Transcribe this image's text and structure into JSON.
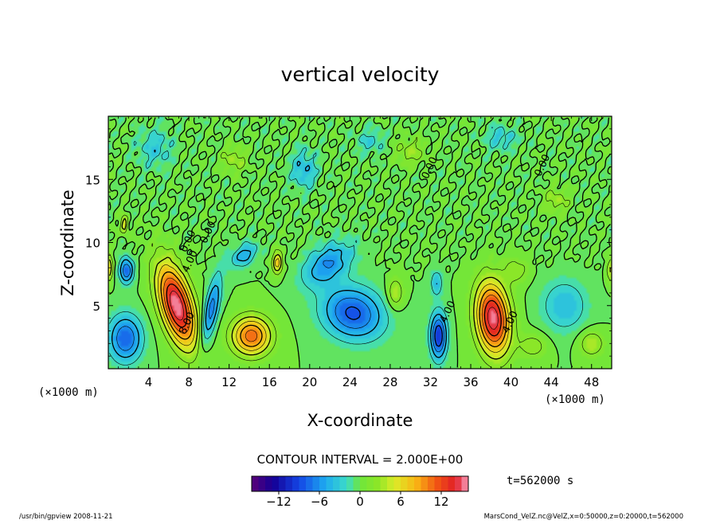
{
  "chart_data": {
    "type": "heatmap",
    "title": "vertical velocity",
    "xlabel": "X-coordinate",
    "ylabel": "Z-coordinate",
    "x_unit_left": "(×1000 m)",
    "x_unit_right": "(×1000 m)",
    "xlim": [
      0,
      50
    ],
    "ylim": [
      0,
      20
    ],
    "x_ticks": [
      4,
      8,
      12,
      16,
      20,
      24,
      28,
      32,
      36,
      40,
      44,
      48
    ],
    "y_ticks": [
      5,
      10,
      15
    ],
    "contour_interval_text": "CONTOUR INTERVAL = 2.000E+00",
    "time_text": "t=562000 s",
    "colorbar": {
      "range": [
        -16,
        16
      ],
      "ticks": [
        -12,
        -6,
        0,
        6,
        12
      ]
    },
    "contour_labels": [
      {
        "x": 8.2,
        "z": 10.0,
        "text": "0.00"
      },
      {
        "x": 8.4,
        "z": 8.4,
        "text": "4.00"
      },
      {
        "x": 8.1,
        "z": 3.5,
        "text": "8.00"
      },
      {
        "x": 10.2,
        "z": 10.7,
        "text": "0.00"
      },
      {
        "x": 32.2,
        "z": 15.8,
        "text": "0.00"
      },
      {
        "x": 43.4,
        "z": 16.0,
        "text": "0.00"
      },
      {
        "x": 34.0,
        "z": 4.4,
        "text": "4.00"
      },
      {
        "x": 40.2,
        "z": 3.6,
        "text": "4.00"
      }
    ],
    "features": [
      {
        "x": 6.8,
        "z": 5.0,
        "sx": 1.5,
        "sz": 3.4,
        "rot": -22,
        "amp": 16
      },
      {
        "x": 38.2,
        "z": 4.0,
        "sx": 1.6,
        "sz": 2.8,
        "rot": -8,
        "amp": 15.5
      },
      {
        "x": 14.2,
        "z": 2.6,
        "sx": 1.9,
        "sz": 1.5,
        "rot": 0,
        "amp": 11
      },
      {
        "x": 16.8,
        "z": 8.4,
        "sx": 0.5,
        "sz": 0.9,
        "rot": 0,
        "amp": 7
      },
      {
        "x": 1.6,
        "z": 11.4,
        "sx": 0.35,
        "sz": 0.7,
        "rot": 0,
        "amp": 6
      },
      {
        "x": 0.1,
        "z": 8.0,
        "sx": 0.35,
        "sz": 1.0,
        "rot": 0,
        "amp": 6
      },
      {
        "x": 28.5,
        "z": 6.0,
        "sx": 0.8,
        "sz": 1.2,
        "rot": 0,
        "amp": 4
      },
      {
        "x": 1.7,
        "z": 2.4,
        "sx": 1.6,
        "sz": 1.8,
        "rot": 0,
        "amp": -8
      },
      {
        "x": 1.8,
        "z": 7.8,
        "sx": 0.7,
        "sz": 1.0,
        "rot": 0,
        "amp": -8
      },
      {
        "x": 10.2,
        "z": 4.6,
        "sx": 0.7,
        "sz": 2.8,
        "rot": 15,
        "amp": -7
      },
      {
        "x": 13.5,
        "z": 9.0,
        "sx": 1.4,
        "sz": 0.8,
        "rot": -25,
        "amp": -5
      },
      {
        "x": 24.3,
        "z": 4.4,
        "sx": 3.0,
        "sz": 2.0,
        "rot": 10,
        "amp": -8.5
      },
      {
        "x": 21.8,
        "z": 8.3,
        "sx": 2.6,
        "sz": 1.4,
        "rot": -25,
        "amp": -6
      },
      {
        "x": 32.8,
        "z": 2.6,
        "sx": 0.8,
        "sz": 1.8,
        "rot": 0,
        "amp": -10
      },
      {
        "x": 32.6,
        "z": 6.8,
        "sx": 0.6,
        "sz": 1.0,
        "rot": 0,
        "amp": -4
      },
      {
        "x": 45.3,
        "z": 5.0,
        "sx": 2.2,
        "sz": 2.0,
        "rot": 0,
        "amp": -4
      },
      {
        "x": 42.2,
        "z": 1.8,
        "sx": 1.4,
        "sz": 1.0,
        "rot": 0,
        "amp": 3
      },
      {
        "x": 48.0,
        "z": 2.0,
        "sx": 1.2,
        "sz": 1.0,
        "rot": 0,
        "amp": 4
      },
      {
        "x": 4.6,
        "z": 17.5,
        "sx": 1.8,
        "sz": 1.5,
        "rot": 0,
        "amp": -3
      },
      {
        "x": 12.5,
        "z": 16.6,
        "sx": 1.2,
        "sz": 1.0,
        "rot": 0,
        "amp": 3
      },
      {
        "x": 30.0,
        "z": 17.2,
        "sx": 1.5,
        "sz": 1.0,
        "rot": 0,
        "amp": 3
      },
      {
        "x": 26.0,
        "z": 18.0,
        "sx": 1.5,
        "sz": 1.0,
        "rot": 0,
        "amp": -2.5
      },
      {
        "x": 39.0,
        "z": 18.3,
        "sx": 1.6,
        "sz": 1.0,
        "rot": 0,
        "amp": -3
      },
      {
        "x": 44.5,
        "z": 13.3,
        "sx": 1.2,
        "sz": 1.0,
        "rot": 0,
        "amp": 3
      },
      {
        "x": 19.4,
        "z": 15.8,
        "sx": 1.3,
        "sz": 1.5,
        "rot": 0,
        "amp": -4
      },
      {
        "x": 40.5,
        "z": 7.8,
        "sx": 1.2,
        "sz": 1.0,
        "rot": 0,
        "amp": 3
      },
      {
        "x": 49.9,
        "z": 7.8,
        "sx": 0.4,
        "sz": 1.0,
        "rot": 0,
        "amp": 4
      }
    ]
  },
  "footer": {
    "left": "/usr/bin/gpview   2008-11-21",
    "right": "MarsCond_VelZ.nc@VelZ,x=0:50000,z=0:20000,t=562000"
  }
}
